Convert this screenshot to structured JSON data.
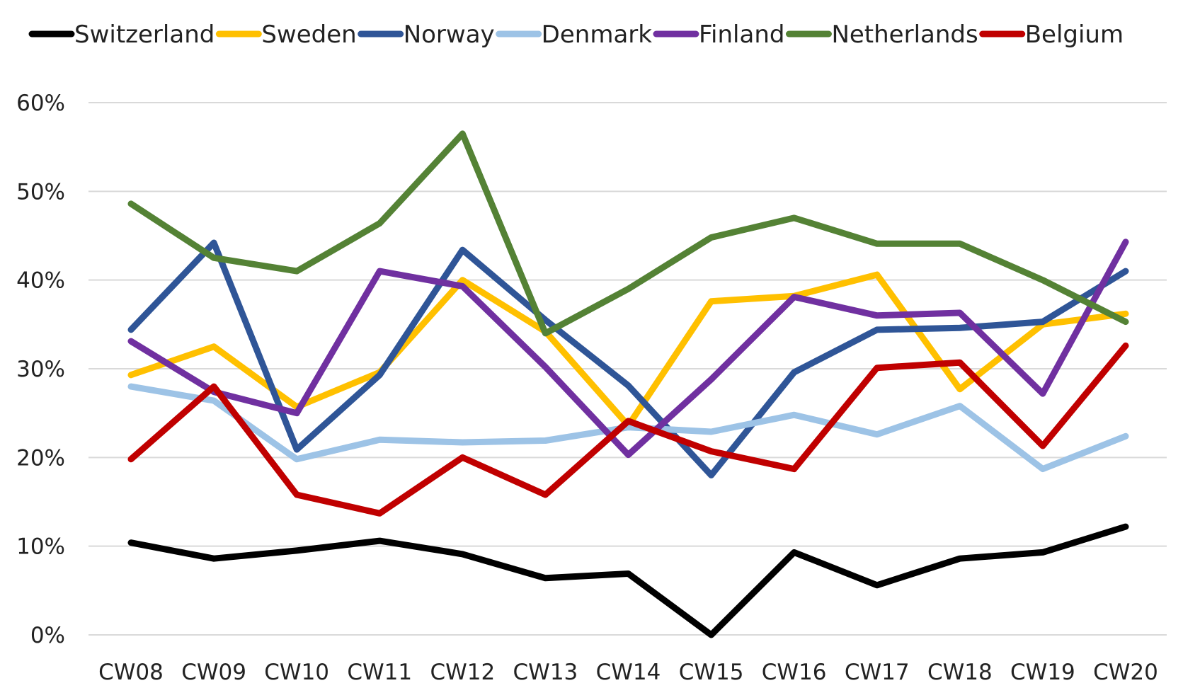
{
  "chart_data": {
    "type": "line",
    "categories": [
      "CW08",
      "CW09",
      "CW10",
      "CW11",
      "CW12",
      "CW13",
      "CW14",
      "CW15",
      "CW16",
      "CW17",
      "CW18",
      "CW19",
      "CW20"
    ],
    "y_tick_labels": [
      "0%",
      "10%",
      "20%",
      "30%",
      "40%",
      "50%",
      "60%"
    ],
    "y_ticks": [
      0,
      10,
      20,
      30,
      40,
      50,
      60
    ],
    "ylim": [
      0,
      60
    ],
    "grid": true,
    "legend_position": "top",
    "series": [
      {
        "name": "Switzerland",
        "color": "#000000",
        "values": [
          10.4,
          8.6,
          9.5,
          10.6,
          9.1,
          6.4,
          6.9,
          0.0,
          9.3,
          5.6,
          8.6,
          9.3,
          12.2
        ]
      },
      {
        "name": "Sweden",
        "color": "#FFC000",
        "values": [
          29.3,
          32.5,
          25.7,
          29.6,
          40.0,
          34.2,
          23.6,
          37.6,
          38.2,
          40.6,
          27.7,
          35.0,
          36.2
        ]
      },
      {
        "name": "Norway",
        "color": "#2F5597",
        "values": [
          34.4,
          44.2,
          20.9,
          29.3,
          43.4,
          35.5,
          28.1,
          18.0,
          29.6,
          34.4,
          34.6,
          35.3,
          41.0
        ]
      },
      {
        "name": "Denmark",
        "color": "#9DC3E6",
        "values": [
          28.0,
          26.4,
          19.8,
          22.0,
          21.7,
          21.9,
          23.4,
          22.9,
          24.8,
          22.6,
          25.8,
          18.7,
          22.4
        ]
      },
      {
        "name": "Finland",
        "color": "#7030A0",
        "values": [
          33.1,
          27.4,
          25.0,
          41.0,
          39.3,
          30.2,
          20.3,
          28.8,
          38.1,
          36.0,
          36.3,
          27.2,
          44.3
        ]
      },
      {
        "name": "Netherlands",
        "color": "#548235",
        "values": [
          48.6,
          42.5,
          41.0,
          46.4,
          56.5,
          34.0,
          39.0,
          44.8,
          47.0,
          44.1,
          44.1,
          40.0,
          35.3
        ]
      },
      {
        "name": "Belgium",
        "color": "#C00000",
        "values": [
          19.8,
          28.0,
          15.8,
          13.7,
          20.0,
          15.8,
          24.1,
          20.7,
          18.7,
          30.1,
          30.7,
          21.3,
          32.6
        ]
      }
    ]
  }
}
